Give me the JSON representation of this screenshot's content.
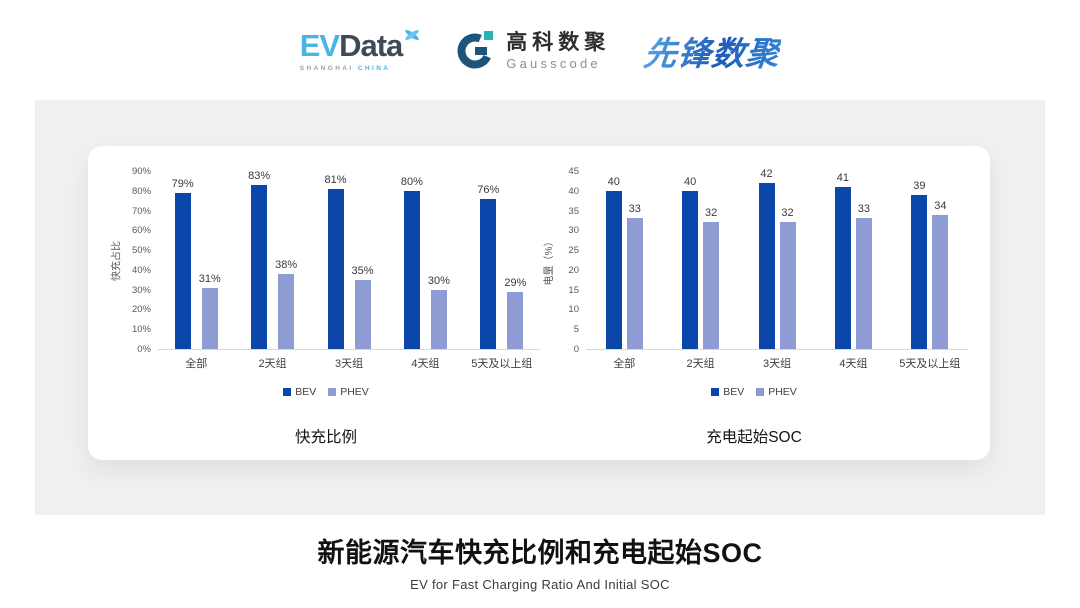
{
  "header": {
    "logos": {
      "evdata": {
        "ev": "EV",
        "data": "Data",
        "sub1": "SHANGHAI",
        "sub2": "CHINA",
        "mark": "propeller-x-icon"
      },
      "gausscode": {
        "cn": "高科数聚",
        "en": "Gausscode",
        "mark": "g-circle-icon"
      },
      "xianfeng": {
        "text": "先锋数聚"
      }
    }
  },
  "colors": {
    "bev": "#0b47ab",
    "phev": "#8f9cd4",
    "panel_bg": "#f0f0f0",
    "axis_text": "#595959",
    "baseline": "#d9d9d9",
    "evdata_blue": "#47b6e7",
    "evdata_dark": "#3d4a5a",
    "gausscode_navy": "#1c547a",
    "gausscode_teal": "#2ab3b5",
    "xianfeng_blue": "#2a72c8"
  },
  "chart_data": [
    {
      "type": "bar",
      "title": "快充比例",
      "ylabel": "快充占比",
      "xlabel": "",
      "categories": [
        "全部",
        "2天组",
        "3天组",
        "4天组",
        "5天及以上组"
      ],
      "series": [
        {
          "name": "BEV",
          "color": "#0b47ab",
          "values": [
            79,
            83,
            81,
            80,
            76
          ]
        },
        {
          "name": "PHEV",
          "color": "#8f9cd4",
          "values": [
            31,
            38,
            35,
            30,
            29
          ]
        }
      ],
      "ylim": [
        0,
        90
      ],
      "ytick_step": 10,
      "tick_suffix": "%",
      "value_suffix": "%",
      "grid": false,
      "legend_position": "bottom"
    },
    {
      "type": "bar",
      "title": "充电起始SOC",
      "ylabel": "电量（%）",
      "xlabel": "",
      "categories": [
        "全部",
        "2天组",
        "3天组",
        "4天组",
        "5天及以上组"
      ],
      "series": [
        {
          "name": "BEV",
          "color": "#0b47ab",
          "values": [
            40,
            40,
            42,
            41,
            39
          ]
        },
        {
          "name": "PHEV",
          "color": "#8f9cd4",
          "values": [
            33,
            32,
            32,
            33,
            34
          ]
        }
      ],
      "ylim": [
        0,
        45
      ],
      "ytick_step": 5,
      "tick_suffix": "",
      "value_suffix": "",
      "grid": false,
      "legend_position": "bottom"
    }
  ],
  "footer": {
    "title": "新能源汽车快充比例和充电起始SOC",
    "subtitle": "EV for Fast Charging Ratio And Initial SOC"
  }
}
